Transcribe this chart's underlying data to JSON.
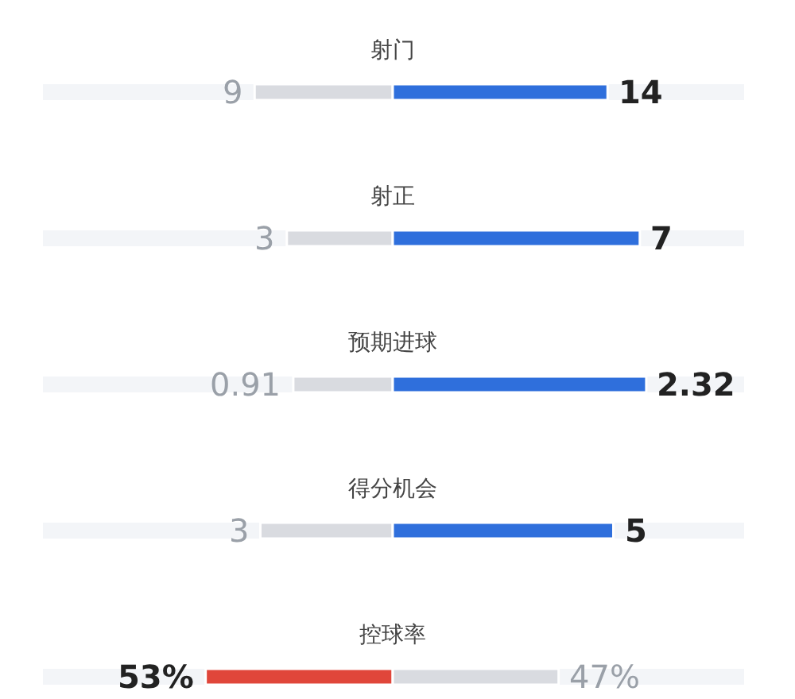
{
  "chart_data": [
    {
      "type": "bar",
      "orientation": "horizontal",
      "stacked": true,
      "categories": [
        "射门"
      ],
      "series": [
        {
          "color": "#d9dbe0",
          "values": [
            9
          ],
          "value_labels": [
            "9"
          ]
        },
        {
          "color": "#2f6fdc",
          "values": [
            14
          ],
          "value_labels": [
            "14"
          ]
        }
      ]
    },
    {
      "type": "bar",
      "orientation": "horizontal",
      "stacked": true,
      "categories": [
        "射正"
      ],
      "series": [
        {
          "color": "#d9dbe0",
          "values": [
            3
          ],
          "value_labels": [
            "3"
          ]
        },
        {
          "color": "#2f6fdc",
          "values": [
            7
          ],
          "value_labels": [
            "7"
          ]
        }
      ]
    },
    {
      "type": "bar",
      "orientation": "horizontal",
      "stacked": true,
      "categories": [
        "预期进球"
      ],
      "series": [
        {
          "color": "#d9dbe0",
          "values": [
            0.91
          ],
          "value_labels": [
            "0.91"
          ]
        },
        {
          "color": "#2f6fdc",
          "values": [
            2.32
          ],
          "value_labels": [
            "2.32"
          ]
        }
      ]
    },
    {
      "type": "bar",
      "orientation": "horizontal",
      "stacked": true,
      "categories": [
        "得分机会"
      ],
      "series": [
        {
          "color": "#d9dbe0",
          "values": [
            3
          ],
          "value_labels": [
            "3"
          ]
        },
        {
          "color": "#2f6fdc",
          "values": [
            5
          ],
          "value_labels": [
            "5"
          ]
        }
      ]
    },
    {
      "type": "bar",
      "orientation": "horizontal",
      "stacked": true,
      "categories": [
        "控球率"
      ],
      "series": [
        {
          "color": "#e0463a",
          "values": [
            53
          ],
          "value_labels": [
            "53%"
          ]
        },
        {
          "color": "#d9dbe0",
          "values": [
            47
          ],
          "value_labels": [
            "47%"
          ]
        }
      ]
    }
  ]
}
